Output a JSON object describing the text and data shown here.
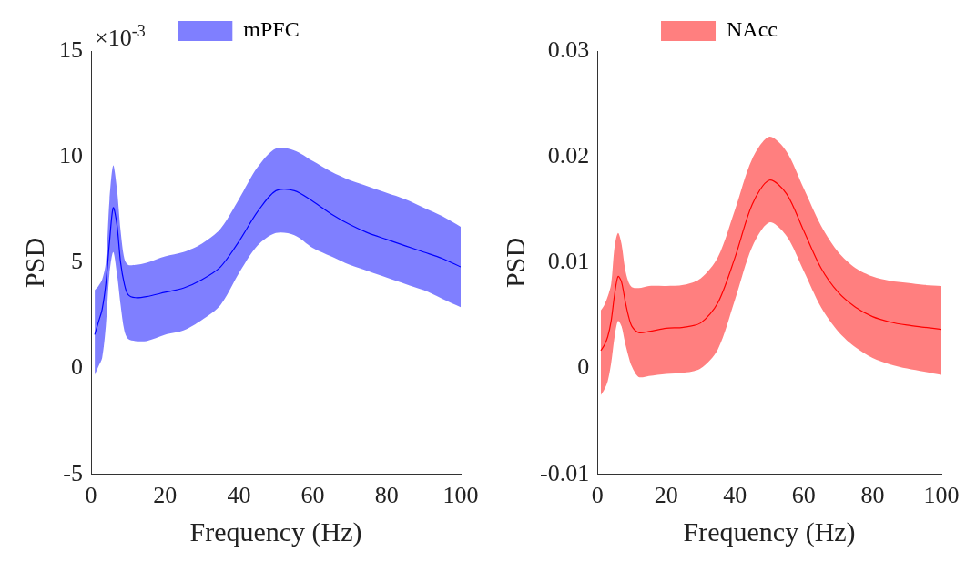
{
  "chart_data": [
    {
      "type": "line",
      "xlabel": "Frequency (Hz)",
      "ylabel": "PSD",
      "annotations": [
        "×10$^{-3}$"
      ],
      "legend": "top",
      "x": [
        1,
        2,
        3,
        4,
        5,
        6,
        7,
        8,
        9,
        10,
        12,
        15,
        20,
        25,
        30,
        35,
        40,
        45,
        50,
        55,
        60,
        65,
        70,
        75,
        80,
        85,
        90,
        95,
        100
      ],
      "series": [
        {
          "name": "mPFC",
          "color": "#0000ff",
          "values": [
            1.6,
            2.2,
            2.8,
            4.0,
            6.0,
            7.6,
            6.8,
            5.0,
            4.0,
            3.5,
            3.35,
            3.4,
            3.6,
            3.8,
            4.2,
            4.8,
            6.0,
            7.4,
            8.4,
            8.4,
            7.9,
            7.3,
            6.8,
            6.4,
            6.1,
            5.8,
            5.5,
            5.2,
            4.8
          ],
          "upper": [
            3.7,
            3.9,
            4.2,
            5.0,
            8.0,
            9.6,
            8.5,
            6.5,
            5.2,
            4.9,
            4.9,
            5.0,
            5.3,
            5.5,
            5.9,
            6.6,
            8.0,
            9.5,
            10.4,
            10.3,
            9.8,
            9.3,
            8.9,
            8.6,
            8.3,
            8.0,
            7.6,
            7.2,
            6.7
          ],
          "lower": [
            -0.3,
            0.1,
            0.5,
            2.0,
            4.5,
            5.5,
            4.5,
            3.0,
            1.8,
            1.4,
            1.3,
            1.3,
            1.6,
            1.8,
            2.3,
            3.0,
            4.5,
            5.8,
            6.4,
            6.3,
            5.7,
            5.3,
            4.9,
            4.6,
            4.3,
            4.0,
            3.7,
            3.3,
            2.9
          ]
        }
      ],
      "xlim": [
        0,
        100
      ],
      "xticks": [
        0,
        20,
        40,
        60,
        80,
        100
      ],
      "ylim": [
        -5,
        15
      ],
      "yticks": [
        -5,
        0,
        5,
        10,
        15
      ]
    },
    {
      "type": "line",
      "xlabel": "Frequency (Hz)",
      "ylabel": "PSD",
      "legend": "top",
      "x": [
        1,
        2,
        3,
        4,
        5,
        6,
        7,
        8,
        9,
        10,
        12,
        15,
        20,
        25,
        30,
        35,
        40,
        45,
        50,
        55,
        60,
        65,
        70,
        75,
        80,
        85,
        90,
        95,
        100
      ],
      "series": [
        {
          "name": "NAcc",
          "color": "#ff0000",
          "values": [
            0.0017,
            0.0022,
            0.003,
            0.0045,
            0.007,
            0.0087,
            0.0082,
            0.0065,
            0.005,
            0.004,
            0.0034,
            0.0035,
            0.0038,
            0.0039,
            0.0043,
            0.0062,
            0.0105,
            0.0155,
            0.0178,
            0.0165,
            0.013,
            0.0095,
            0.0072,
            0.0058,
            0.0049,
            0.0044,
            0.0041,
            0.0039,
            0.0037
          ],
          "upper": [
            0.0055,
            0.006,
            0.0068,
            0.008,
            0.0115,
            0.0128,
            0.0118,
            0.0095,
            0.0082,
            0.0077,
            0.0076,
            0.0078,
            0.0078,
            0.0079,
            0.0085,
            0.0105,
            0.015,
            0.0198,
            0.0219,
            0.0205,
            0.017,
            0.0135,
            0.011,
            0.0095,
            0.0087,
            0.0083,
            0.0081,
            0.0079,
            0.0078
          ],
          "lower": [
            -0.0025,
            -0.002,
            -0.0012,
            0.0005,
            0.003,
            0.0045,
            0.004,
            0.0025,
            0.0012,
            0.0002,
            -0.0008,
            -0.0007,
            -0.0005,
            -0.0004,
            0,
            0.0018,
            0.0065,
            0.0115,
            0.0138,
            0.0125,
            0.0092,
            0.0058,
            0.0035,
            0.002,
            0.001,
            0.0004,
            0,
            -0.0003,
            -0.0006
          ]
        }
      ],
      "xlim": [
        0,
        100
      ],
      "xticks": [
        0,
        20,
        40,
        60,
        80,
        100
      ],
      "ylim": [
        -0.01,
        0.03
      ],
      "yticks": [
        -0.01,
        0,
        0.01,
        0.02,
        0.03
      ]
    }
  ]
}
